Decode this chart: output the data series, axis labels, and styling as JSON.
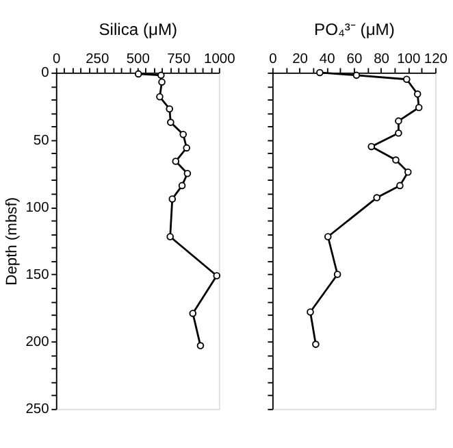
{
  "chart_data": [
    {
      "type": "line",
      "xlabel": "Silica (μM)",
      "ylabel": "Depth (mbsf)",
      "marker": "circle",
      "grid": false,
      "xlim": [
        0,
        1000
      ],
      "ylim": [
        250,
        0
      ],
      "xticks": [
        0,
        {
          "value": 50,
          "label": null
        },
        {
          "value": 100,
          "label": null
        },
        {
          "value": 150,
          "label": null
        },
        {
          "value": 200,
          "label": null
        },
        250,
        {
          "value": 300,
          "label": null
        },
        {
          "value": 350,
          "label": null
        },
        {
          "value": 400,
          "label": null
        },
        {
          "value": 450,
          "label": null
        },
        500,
        {
          "value": 550,
          "label": null
        },
        {
          "value": 600,
          "label": null
        },
        {
          "value": 650,
          "label": null
        },
        {
          "value": 700,
          "label": null
        },
        750,
        {
          "value": 800,
          "label": null
        },
        {
          "value": 850,
          "label": null
        },
        {
          "value": 900,
          "label": null
        },
        {
          "value": 950,
          "label": null
        },
        1000
      ],
      "yticks": [
        0,
        {
          "value": 10,
          "label": null
        },
        {
          "value": 20,
          "label": null
        },
        {
          "value": 30,
          "label": null
        },
        {
          "value": 40,
          "label": null
        },
        50,
        {
          "value": 60,
          "label": null
        },
        {
          "value": 70,
          "label": null
        },
        {
          "value": 80,
          "label": null
        },
        {
          "value": 90,
          "label": null
        },
        100,
        {
          "value": 110,
          "label": null
        },
        {
          "value": 120,
          "label": null
        },
        {
          "value": 130,
          "label": null
        },
        {
          "value": 140,
          "label": null
        },
        150,
        {
          "value": 160,
          "label": null
        },
        {
          "value": 170,
          "label": null
        },
        {
          "value": 180,
          "label": null
        },
        {
          "value": 190,
          "label": null
        },
        200,
        {
          "value": 210,
          "label": null
        },
        {
          "value": 220,
          "label": null
        },
        {
          "value": 230,
          "label": null
        },
        {
          "value": 240,
          "label": null
        },
        250
      ],
      "series": [
        {
          "color": "#000000",
          "x": [
            506,
            645,
            650,
            637,
            697,
            704,
            781,
            802,
            735,
            807,
            774,
            714,
            701,
            987,
            840,
            887
          ],
          "values": [
            1,
            2,
            7,
            18,
            27,
            37,
            46,
            56,
            66,
            75,
            84,
            94,
            122,
            151,
            179,
            203
          ]
        }
      ]
    },
    {
      "type": "line",
      "xlabel": "PO₄³⁻ (μM)",
      "marker": "circle",
      "grid": false,
      "tick_labels": "x",
      "xlim": [
        0,
        120
      ],
      "ylim": [
        250,
        0
      ],
      "xticks": [
        0,
        {
          "value": 10,
          "label": null
        },
        20,
        {
          "value": 30,
          "label": null
        },
        40,
        {
          "value": 50,
          "label": null
        },
        60,
        {
          "value": 70,
          "label": null
        },
        80,
        {
          "value": 90,
          "label": null
        },
        100,
        {
          "value": 110,
          "label": null
        },
        120
      ],
      "yticks": [
        0,
        {
          "value": 10,
          "label": null
        },
        {
          "value": 20,
          "label": null
        },
        {
          "value": 30,
          "label": null
        },
        {
          "value": 40,
          "label": null
        },
        50,
        {
          "value": 60,
          "label": null
        },
        {
          "value": 70,
          "label": null
        },
        {
          "value": 80,
          "label": null
        },
        {
          "value": 90,
          "label": null
        },
        100,
        {
          "value": 110,
          "label": null
        },
        {
          "value": 120,
          "label": null
        },
        {
          "value": 130,
          "label": null
        },
        {
          "value": 140,
          "label": null
        },
        150,
        {
          "value": 160,
          "label": null
        },
        {
          "value": 170,
          "label": null
        },
        {
          "value": 180,
          "label": null
        },
        {
          "value": 190,
          "label": null
        },
        200,
        {
          "value": 210,
          "label": null
        },
        {
          "value": 220,
          "label": null
        },
        {
          "value": 230,
          "label": null
        },
        {
          "value": 240,
          "label": null
        },
        250
      ],
      "series": [
        {
          "color": "#000000",
          "x": [
            35,
            62,
            99,
            107,
            108,
            93,
            93,
            73,
            91,
            100,
            94,
            77,
            41,
            48,
            28,
            32
          ],
          "values": [
            0,
            2,
            5,
            16,
            26,
            36,
            45,
            55,
            65,
            74,
            84,
            93,
            122,
            150,
            178,
            202
          ]
        }
      ]
    }
  ]
}
